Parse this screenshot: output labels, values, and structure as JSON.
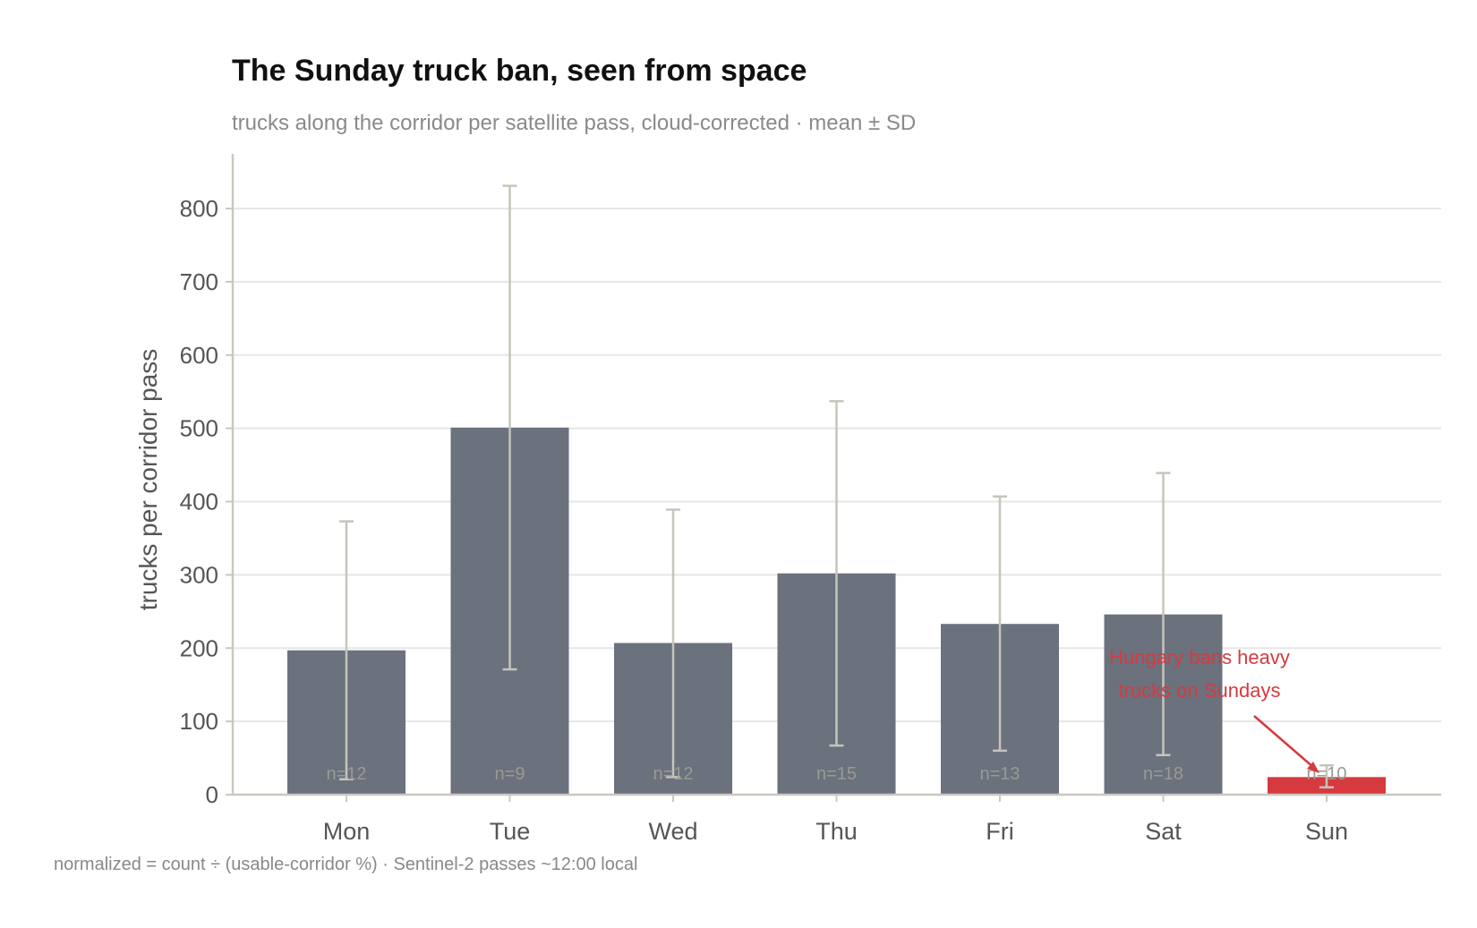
{
  "title": "The Sunday truck ban, seen from space",
  "subtitle": "trucks along the corridor per satellite pass, cloud-corrected · mean ± SD",
  "footer": "normalized = count ÷ (usable-corridor %) · Sentinel-2 passes ~12:00 local",
  "annotation": {
    "line1": "Hungary bans heavy",
    "line2": "trucks on Sundays"
  },
  "colors": {
    "bar": "#6b717d",
    "highlight": "#d63a3f",
    "error_bar": "#c6c5bc",
    "grid": "#e6e6e6",
    "axis": "#c9c8c0"
  },
  "chart_data": {
    "type": "bar",
    "title": "The Sunday truck ban, seen from space",
    "subtitle": "trucks along the corridor per satellite pass, cloud-corrected · mean ± SD",
    "xlabel": "",
    "ylabel": "trucks per corridor pass",
    "ylim": [
      0,
      870
    ],
    "yticks": [
      0,
      100,
      200,
      300,
      400,
      500,
      600,
      700,
      800
    ],
    "grid": "horizontal",
    "categories": [
      "Mon",
      "Tue",
      "Wed",
      "Thu",
      "Fri",
      "Sat",
      "Sun"
    ],
    "values": [
      197,
      501,
      207,
      302,
      233,
      246,
      24
    ],
    "error_low": [
      21,
      171,
      24,
      67,
      60,
      54,
      10
    ],
    "error_high": [
      373,
      831,
      389,
      537,
      407,
      439,
      40
    ],
    "counts": [
      "n=12",
      "n=9",
      "n=12",
      "n=15",
      "n=13",
      "n=18",
      "n=10"
    ],
    "highlight": "Sun"
  }
}
